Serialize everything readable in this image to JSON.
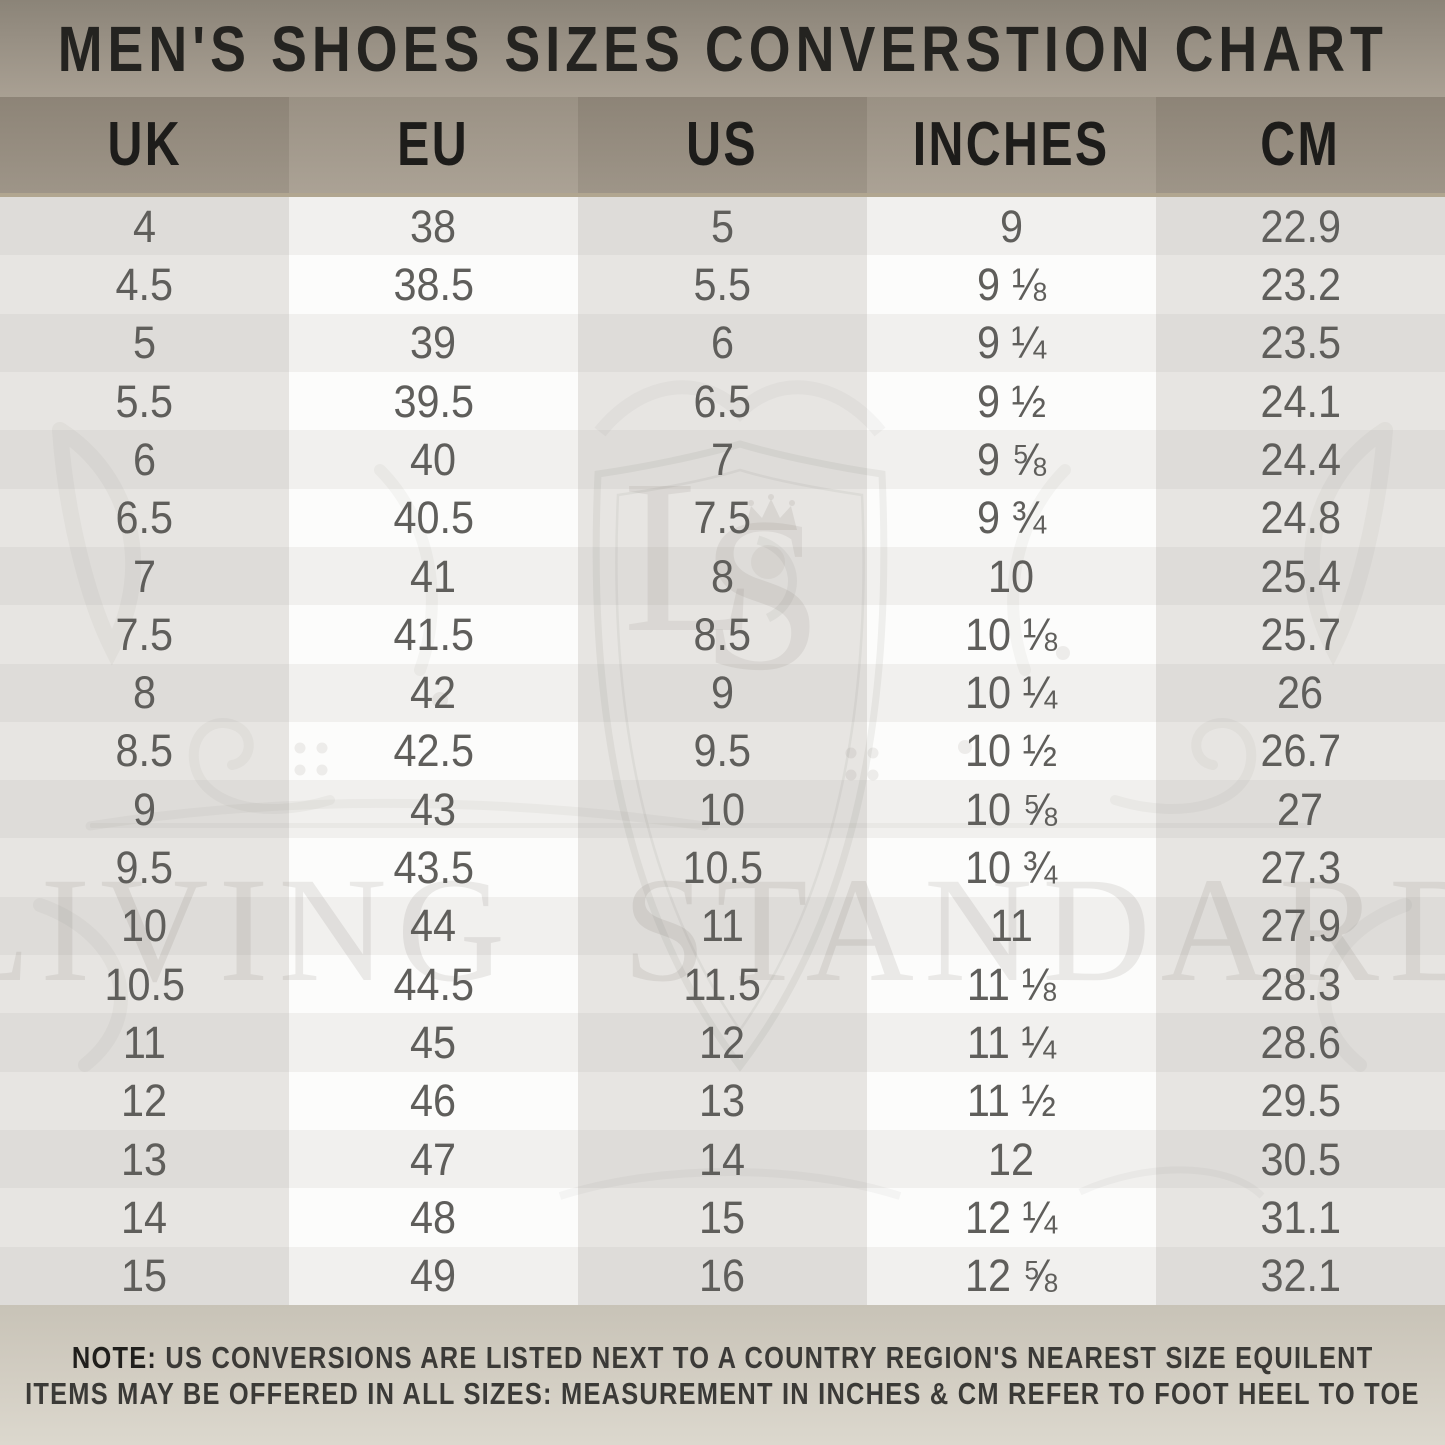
{
  "title": "MEN'S SHOES SIZES CONVERSTION CHART",
  "table": {
    "columns": [
      "UK",
      "EU",
      "US",
      "INCHES",
      "CM"
    ],
    "rows": [
      [
        "4",
        "38",
        "5",
        "9",
        "22.9"
      ],
      [
        "4.5",
        "38.5",
        "5.5",
        "9 ⅛",
        "23.2"
      ],
      [
        "5",
        "39",
        "6",
        "9 ¼",
        "23.5"
      ],
      [
        "5.5",
        "39.5",
        "6.5",
        "9 ½",
        "24.1"
      ],
      [
        "6",
        "40",
        "7",
        "9 ⅝",
        "24.4"
      ],
      [
        "6.5",
        "40.5",
        "7.5",
        "9 ¾",
        "24.8"
      ],
      [
        "7",
        "41",
        "8",
        "10",
        "25.4"
      ],
      [
        "7.5",
        "41.5",
        "8.5",
        "10 ⅛",
        "25.7"
      ],
      [
        "8",
        "42",
        "9",
        "10 ¼",
        "26"
      ],
      [
        "8.5",
        "42.5",
        "9.5",
        "10 ½",
        "26.7"
      ],
      [
        "9",
        "43",
        "10",
        "10 ⅝",
        "27"
      ],
      [
        "9.5",
        "43.5",
        "10.5",
        "10 ¾",
        "27.3"
      ],
      [
        "10",
        "44",
        "11",
        "11",
        "27.9"
      ],
      [
        "10.5",
        "44.5",
        "11.5",
        "11 ⅛",
        "28.3"
      ],
      [
        "11",
        "45",
        "12",
        "11 ¼",
        "28.6"
      ],
      [
        "12",
        "46",
        "13",
        "11 ½",
        "29.5"
      ],
      [
        "13",
        "47",
        "14",
        "12",
        "30.5"
      ],
      [
        "14",
        "48",
        "15",
        "12 ¼",
        "31.1"
      ],
      [
        "15",
        "49",
        "16",
        "12 ⅝",
        "32.1"
      ]
    ]
  },
  "note": {
    "label": "NOTE:",
    "line1": "US CONVERSIONS ARE LISTED NEXT TO A COUNTRY REGION'S NEAREST SIZE EQUILENT",
    "line2": "ITEMS MAY BE OFFERED IN ALL SIZES: MEASUREMENT IN INCHES & CM REFER TO FOOT HEEL TO TOE"
  },
  "watermark": {
    "brand": "LIVING STANDARD",
    "monogram_l": "L",
    "monogram_s": "S"
  },
  "colors": {
    "title_band_top": "#8b8478",
    "title_band_bottom": "#a9a093",
    "header_col_dark": "#938a7d",
    "header_col_light": "#a29a8c",
    "header_separator": "#b1a690",
    "row_dark_col_odd": "#dedcd9",
    "row_dark_col_even": "#e7e5e2",
    "row_light_col_odd": "#f1f0ee",
    "row_light_col_even": "#fcfcfb",
    "data_text": "#5f5e5b",
    "header_text": "#1d1c1a",
    "title_text": "#242320",
    "footer_bg": "#d3cec3",
    "note_text": "#3b3a37",
    "watermark_ink": "#6b665c"
  },
  "chart_data": {
    "type": "table",
    "title": "MEN'S SHOES SIZES CONVERSTION CHART",
    "columns": [
      "UK",
      "EU",
      "US",
      "INCHES",
      "CM"
    ],
    "rows": [
      [
        "4",
        "38",
        "5",
        "9",
        "22.9"
      ],
      [
        "4.5",
        "38.5",
        "5.5",
        "9 1/8",
        "23.2"
      ],
      [
        "5",
        "39",
        "6",
        "9 1/4",
        "23.5"
      ],
      [
        "5.5",
        "39.5",
        "6.5",
        "9 1/2",
        "24.1"
      ],
      [
        "6",
        "40",
        "7",
        "9 5/8",
        "24.4"
      ],
      [
        "6.5",
        "40.5",
        "7.5",
        "9 3/4",
        "24.8"
      ],
      [
        "7",
        "41",
        "8",
        "10",
        "25.4"
      ],
      [
        "7.5",
        "41.5",
        "8.5",
        "10 1/8",
        "25.7"
      ],
      [
        "8",
        "42",
        "9",
        "10 1/4",
        "26"
      ],
      [
        "8.5",
        "42.5",
        "9.5",
        "10 1/2",
        "26.7"
      ],
      [
        "9",
        "43",
        "10",
        "10 5/8",
        "27"
      ],
      [
        "9.5",
        "43.5",
        "10.5",
        "10 3/4",
        "27.3"
      ],
      [
        "10",
        "44",
        "11",
        "11",
        "27.9"
      ],
      [
        "10.5",
        "44.5",
        "11.5",
        "11 1/8",
        "28.3"
      ],
      [
        "11",
        "45",
        "12",
        "11 1/4",
        "28.6"
      ],
      [
        "12",
        "46",
        "13",
        "11 1/2",
        "29.5"
      ],
      [
        "13",
        "47",
        "14",
        "12",
        "30.5"
      ],
      [
        "14",
        "48",
        "15",
        "12 1/4",
        "31.1"
      ],
      [
        "15",
        "49",
        "16",
        "12 5/8",
        "32.1"
      ]
    ]
  }
}
